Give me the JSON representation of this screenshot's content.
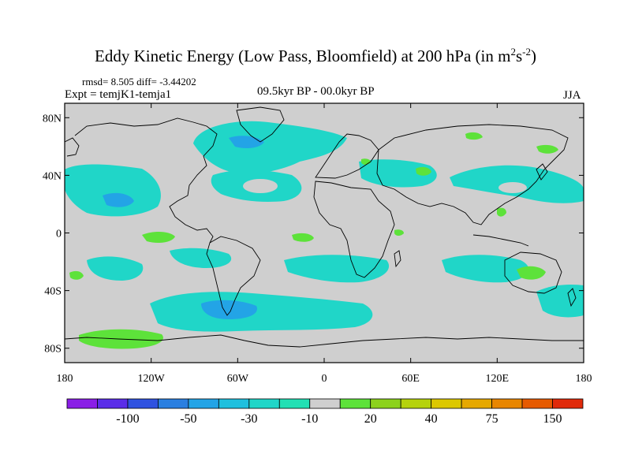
{
  "title": {
    "main": "Eddy Kinetic Energy (Low Pass, Bloomfield) at 200 hPa (in m",
    "sup1": "2",
    "mid": "s",
    "sup2": "-2",
    "close": ")"
  },
  "stats": "rmsd= 8.505 diff= -3.44202",
  "experiment": "Expt = temjK1-temja1",
  "period": "09.5kyr BP - 00.0kyr BP",
  "season": "JJA",
  "map": {
    "lon_range": [
      -180,
      180
    ],
    "lat_range": [
      -90,
      90
    ],
    "lat_labels": [
      "80N",
      "40N",
      "0",
      "40S",
      "80S"
    ],
    "lat_values": [
      80,
      40,
      0,
      -40,
      -80
    ],
    "lon_labels": [
      "180",
      "120W",
      "60W",
      "0",
      "60E",
      "120E",
      "180"
    ],
    "lon_values": [
      -180,
      -120,
      -60,
      0,
      60,
      120,
      180
    ],
    "background_color": "#cfcfcf"
  },
  "colorbar": {
    "colors": [
      "#8a1ee6",
      "#5a2de8",
      "#2f52e0",
      "#2a7fe0",
      "#23a4e6",
      "#1fc0de",
      "#20d6c8",
      "#22e0b4",
      "#cfcfcf",
      "#5de23a",
      "#8cd21c",
      "#b5d20c",
      "#dcc800",
      "#e6a800",
      "#e88600",
      "#e65a00",
      "#e02a0a"
    ],
    "labels": [
      "-100",
      "-50",
      "-30",
      "-10",
      "20",
      "40",
      "75",
      "150"
    ]
  }
}
